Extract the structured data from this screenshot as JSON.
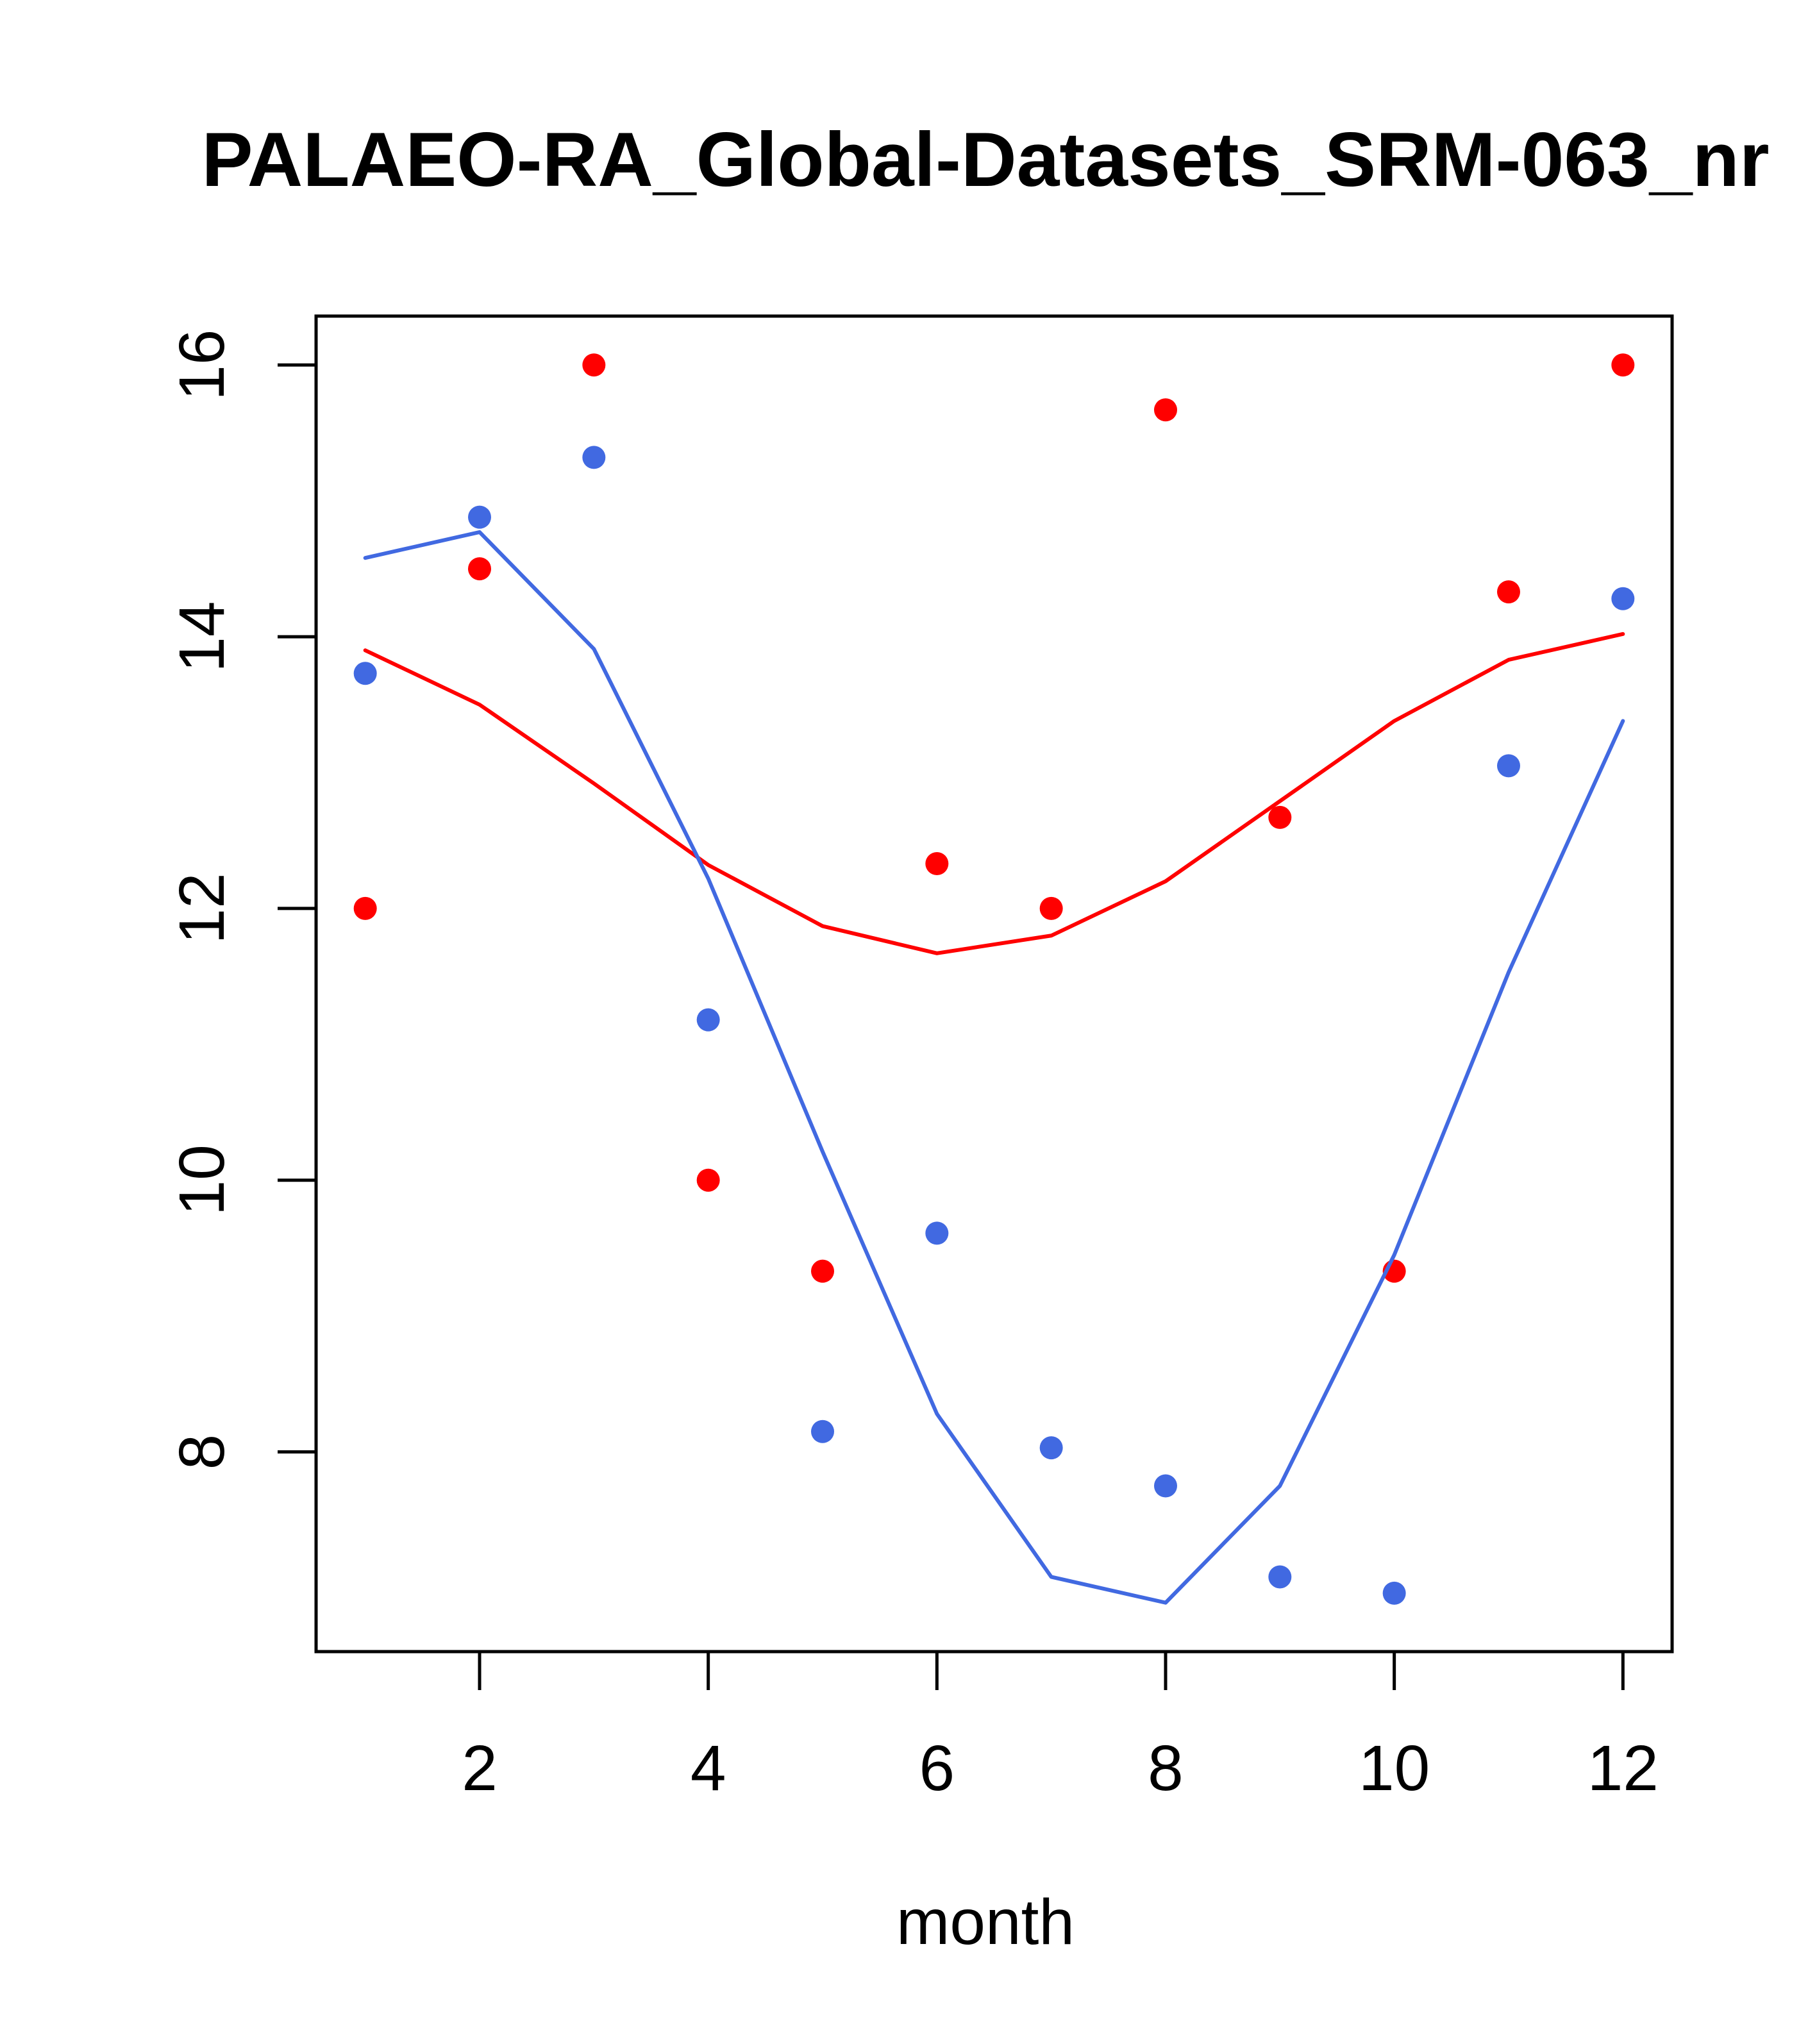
{
  "chart_data": {
    "type": "line",
    "title": "PALAEO-RA_Global-Datasets_SRM-063_nr",
    "xlabel": "month",
    "ylabel": "",
    "xlim": [
      0.57,
      12.43
    ],
    "ylim": [
      6.53,
      16.36
    ],
    "x_ticks": [
      2,
      4,
      6,
      8,
      10,
      12
    ],
    "x_tick_labels": [
      "2",
      "4",
      "6",
      "8",
      "10",
      "12"
    ],
    "y_ticks": [
      8,
      10,
      12,
      14,
      16
    ],
    "y_tick_labels": [
      "8",
      "10",
      "12",
      "14",
      "16"
    ],
    "grid": false,
    "legend": null,
    "x": [
      1,
      2,
      3,
      4,
      5,
      6,
      7,
      8,
      9,
      10,
      11,
      12
    ],
    "series": [
      {
        "name": "red points",
        "kind": "scatter",
        "color": "#FF0000",
        "values": [
          12.0,
          14.5,
          16.0,
          10.0,
          9.33,
          12.33,
          12.0,
          15.67,
          12.67,
          9.33,
          14.33,
          16.0
        ]
      },
      {
        "name": "red line",
        "kind": "line",
        "color": "#FF0000",
        "values": [
          13.9,
          13.5,
          12.92,
          12.32,
          11.87,
          11.67,
          11.8,
          12.2,
          12.79,
          13.38,
          13.83,
          14.02
        ]
      },
      {
        "name": "blue points",
        "kind": "scatter",
        "color": "#4169E1",
        "values": [
          13.73,
          14.88,
          15.32,
          11.18,
          8.15,
          9.61,
          8.03,
          7.75,
          7.08,
          6.96,
          13.05,
          14.28
        ]
      },
      {
        "name": "blue line",
        "kind": "line",
        "color": "#4169E1",
        "values": [
          14.58,
          14.77,
          13.91,
          12.22,
          10.21,
          8.28,
          7.08,
          6.89,
          7.75,
          9.45,
          11.53,
          13.38
        ]
      }
    ]
  }
}
